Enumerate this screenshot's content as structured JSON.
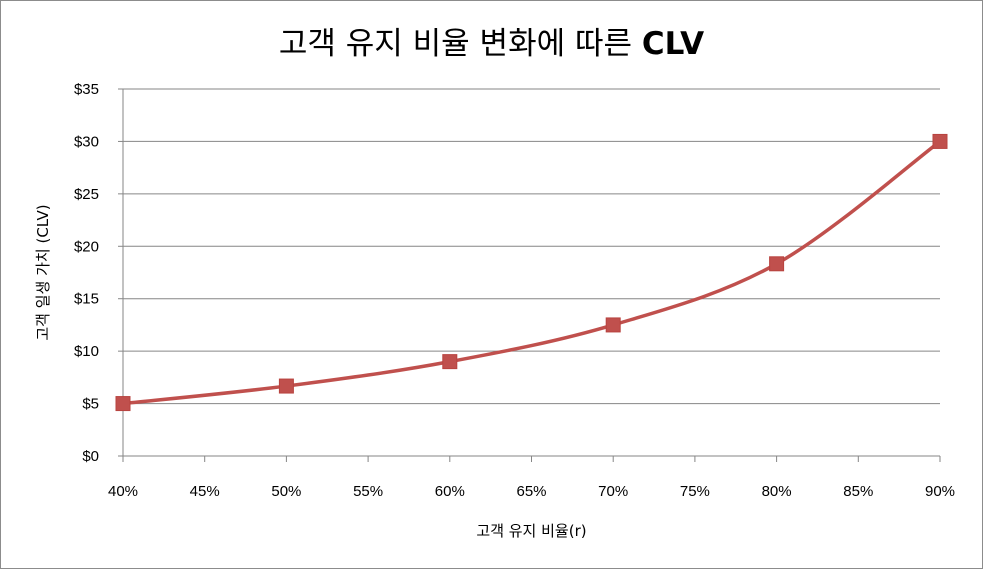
{
  "chart_data": {
    "type": "line",
    "title_main": "고객 유지 비율 변화에 따른 ",
    "title_bold": "CLV",
    "xlabel": "고객 유지 비율(r)",
    "ylabel": "고객 일생 가치 (CLV)",
    "x_ticks": [
      "40%",
      "45%",
      "50%",
      "55%",
      "60%",
      "65%",
      "70%",
      "75%",
      "80%",
      "85%",
      "90%"
    ],
    "y_ticks": [
      "$0",
      "$5",
      "$10",
      "$15",
      "$20",
      "$25",
      "$30",
      "$35"
    ],
    "xlim": [
      0.4,
      0.9
    ],
    "ylim": [
      0,
      35
    ],
    "grid": "horizontal",
    "series": [
      {
        "x": [
          0.4,
          0.5,
          0.6,
          0.7,
          0.8,
          0.9
        ],
        "y": [
          5.0,
          6.67,
          9.0,
          12.5,
          18.33,
          30.0
        ],
        "color": "#c0504d",
        "marker": "square"
      }
    ]
  }
}
